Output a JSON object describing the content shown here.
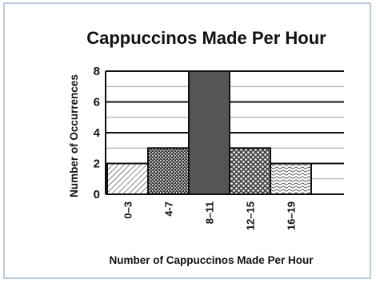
{
  "chart_data": {
    "type": "bar",
    "title": "Cappuccinos Made Per Hour",
    "xlabel": "Number of Cappuccinos Made Per Hour",
    "ylabel": "Number of Occurrences",
    "categories": [
      "0–3",
      "4-7",
      "8–11",
      "12–15",
      "16–19"
    ],
    "values": [
      2,
      3,
      8,
      3,
      2
    ],
    "ylim": [
      0,
      8
    ],
    "yticks": [
      0,
      2,
      4,
      6,
      8
    ],
    "grid": true,
    "legend": "none",
    "bar_fills": [
      "diagonal-hatch",
      "dense-crosshatch",
      "dark-gray",
      "dotted",
      "wavy"
    ]
  }
}
